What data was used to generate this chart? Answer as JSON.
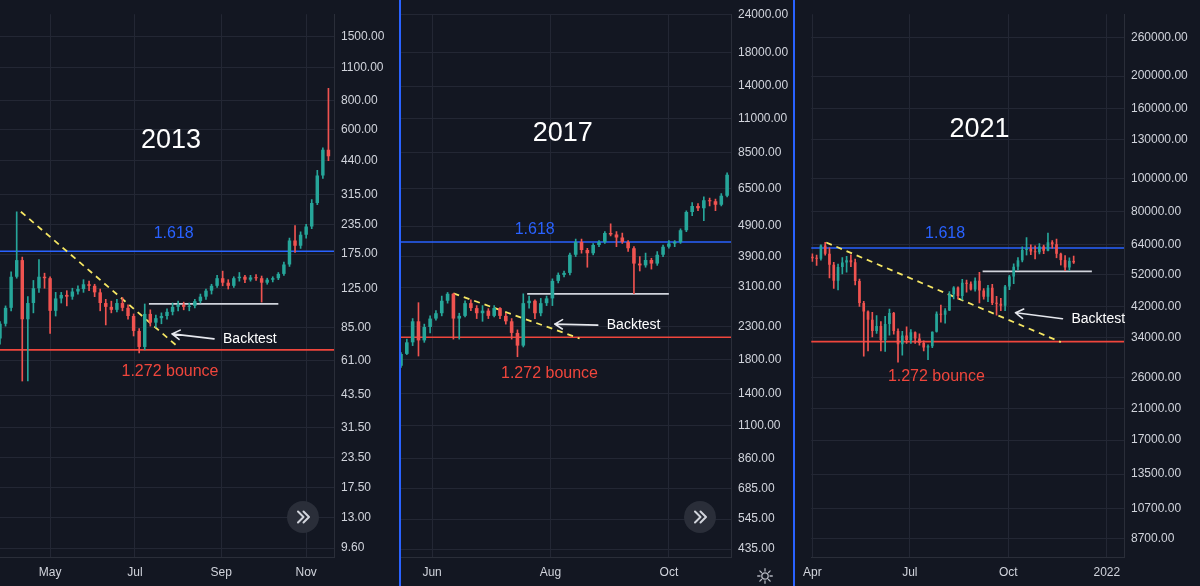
{
  "chart_data": [
    {
      "type": "candlestick",
      "title": "2013",
      "log": true,
      "grid": true,
      "marker": "none",
      "xlim": [
        "2013-03-26",
        "2013-11-21"
      ],
      "xticks": [
        {
          "value": "2013-05-01",
          "label": "May"
        },
        {
          "value": "2013-07-01",
          "label": "Jul"
        },
        {
          "value": "2013-09-01",
          "label": "Sep"
        },
        {
          "value": "2013-11-01",
          "label": "Nov"
        }
      ],
      "ylim": [
        8.8,
        1870
      ],
      "yticks": [
        {
          "value": 9.6,
          "label": "9.60"
        },
        {
          "value": 13,
          "label": "13.00"
        },
        {
          "value": 17.5,
          "label": "17.50"
        },
        {
          "value": 23.5,
          "label": "23.50"
        },
        {
          "value": 31.5,
          "label": "31.50"
        },
        {
          "value": 43.5,
          "label": "43.50"
        },
        {
          "value": 61,
          "label": "61.00"
        },
        {
          "value": 85,
          "label": "85.00"
        },
        {
          "value": 125,
          "label": "125.00"
        },
        {
          "value": 175,
          "label": "175.00"
        },
        {
          "value": 235,
          "label": "235.00"
        },
        {
          "value": 315,
          "label": "315.00"
        },
        {
          "value": 440,
          "label": "440.00"
        },
        {
          "value": 600,
          "label": "600.00"
        },
        {
          "value": 800,
          "label": "800.00"
        },
        {
          "value": 1100,
          "label": "1100.00"
        },
        {
          "value": 1500,
          "label": "1500.00"
        }
      ],
      "x": [
        "2013-03-26",
        "2013-03-30",
        "2013-04-03",
        "2013-04-07",
        "2013-04-11",
        "2013-04-15",
        "2013-04-19",
        "2013-04-23",
        "2013-04-27",
        "2013-05-01",
        "2013-05-05",
        "2013-05-09",
        "2013-05-13",
        "2013-05-17",
        "2013-05-21",
        "2013-05-25",
        "2013-05-29",
        "2013-06-02",
        "2013-06-06",
        "2013-06-10",
        "2013-06-14",
        "2013-06-18",
        "2013-06-22",
        "2013-06-26",
        "2013-06-30",
        "2013-07-04",
        "2013-07-08",
        "2013-07-12",
        "2013-07-16",
        "2013-07-20",
        "2013-07-24",
        "2013-07-28",
        "2013-08-01",
        "2013-08-05",
        "2013-08-09",
        "2013-08-13",
        "2013-08-17",
        "2013-08-21",
        "2013-08-25",
        "2013-08-29",
        "2013-09-02",
        "2013-09-06",
        "2013-09-10",
        "2013-09-14",
        "2013-09-18",
        "2013-09-22",
        "2013-09-26",
        "2013-09-30",
        "2013-10-04",
        "2013-10-08",
        "2013-10-12",
        "2013-10-16",
        "2013-10-20",
        "2013-10-24",
        "2013-10-28",
        "2013-11-01",
        "2013-11-05",
        "2013-11-09",
        "2013-11-13",
        "2013-11-17"
      ],
      "ohlc": [
        [
          76,
          90,
          72,
          88
        ],
        [
          88,
          105,
          86,
          103
        ],
        [
          103,
          147,
          100,
          140
        ],
        [
          140,
          266,
          138,
          165
        ],
        [
          165,
          170,
          50,
          92
        ],
        [
          92,
          115,
          50,
          108
        ],
        [
          108,
          135,
          98,
          125
        ],
        [
          125,
          166,
          120,
          140
        ],
        [
          140,
          145,
          125,
          138
        ],
        [
          138,
          140,
          80,
          100
        ],
        [
          100,
          120,
          95,
          113
        ],
        [
          113,
          120,
          108,
          117
        ],
        [
          117,
          122,
          105,
          115
        ],
        [
          115,
          125,
          112,
          121
        ],
        [
          121,
          128,
          118,
          124
        ],
        [
          124,
          136,
          120,
          130
        ],
        [
          130,
          134,
          122,
          128
        ],
        [
          128,
          130,
          115,
          120
        ],
        [
          120,
          124,
          100,
          108
        ],
        [
          108,
          112,
          87,
          104
        ],
        [
          104,
          110,
          98,
          101
        ],
        [
          101,
          112,
          99,
          108
        ],
        [
          108,
          114,
          100,
          103
        ],
        [
          103,
          106,
          92,
          95
        ],
        [
          95,
          97,
          78,
          82
        ],
        [
          82,
          84,
          66,
          70
        ],
        [
          70,
          107,
          68,
          97
        ],
        [
          97,
          101,
          86,
          89
        ],
        [
          89,
          96,
          85,
          93
        ],
        [
          93,
          98,
          88,
          95
        ],
        [
          95,
          102,
          92,
          99
        ],
        [
          99,
          108,
          96,
          104
        ],
        [
          104,
          110,
          100,
          106
        ],
        [
          106,
          109,
          101,
          104
        ],
        [
          104,
          108,
          100,
          105
        ],
        [
          105,
          112,
          103,
          110
        ],
        [
          110,
          118,
          108,
          115
        ],
        [
          115,
          124,
          112,
          122
        ],
        [
          122,
          130,
          118,
          128
        ],
        [
          128,
          142,
          126,
          138
        ],
        [
          138,
          148,
          128,
          132
        ],
        [
          132,
          136,
          124,
          128
        ],
        [
          128,
          140,
          126,
          138
        ],
        [
          138,
          146,
          134,
          140
        ],
        [
          140,
          142,
          132,
          136
        ],
        [
          136,
          142,
          134,
          139
        ],
        [
          139,
          143,
          135,
          138
        ],
        [
          138,
          141,
          109,
          132
        ],
        [
          132,
          138,
          130,
          136
        ],
        [
          136,
          140,
          133,
          138
        ],
        [
          138,
          146,
          136,
          144
        ],
        [
          144,
          162,
          142,
          158
        ],
        [
          158,
          205,
          155,
          200
        ],
        [
          200,
          232,
          178,
          190
        ],
        [
          190,
          218,
          185,
          212
        ],
        [
          212,
          235,
          205,
          230
        ],
        [
          230,
          300,
          225,
          290
        ],
        [
          290,
          400,
          285,
          380
        ],
        [
          380,
          500,
          370,
          490
        ],
        [
          490,
          900,
          440,
          460
        ]
      ],
      "colors": [
        "#26a69a",
        "#26a69a",
        "#26a69a",
        "#26a69a",
        "#ef5350",
        "#26a69a",
        "#26a69a",
        "#26a69a",
        "#ef5350",
        "#ef5350",
        "#26a69a",
        "#26a69a",
        "#ef5350",
        "#26a69a",
        "#26a69a",
        "#26a69a",
        "#ef5350",
        "#ef5350",
        "#ef5350",
        "#ef5350",
        "#ef5350",
        "#26a69a",
        "#ef5350",
        "#ef5350",
        "#ef5350",
        "#ef5350",
        "#26a69a",
        "#ef5350",
        "#26a69a",
        "#26a69a",
        "#26a69a",
        "#26a69a",
        "#26a69a",
        "#ef5350",
        "#26a69a",
        "#26a69a",
        "#26a69a",
        "#26a69a",
        "#26a69a",
        "#26a69a",
        "#ef5350",
        "#ef5350",
        "#26a69a",
        "#26a69a",
        "#ef5350",
        "#26a69a",
        "#ef5350",
        "#ef5350",
        "#26a69a",
        "#26a69a",
        "#26a69a",
        "#26a69a",
        "#26a69a",
        "#ef5350",
        "#26a69a",
        "#26a69a",
        "#26a69a",
        "#26a69a",
        "#26a69a",
        "#ef5350"
      ],
      "series": [
        {
          "type": "line",
          "x": [
            "2013-07-11",
            "2013-10-12"
          ],
          "values": [
            107,
            107
          ],
          "color": "#d1d4dc"
        },
        {
          "type": "line",
          "x": [
            "2013-04-10",
            "2013-08-01"
          ],
          "values": [
            266,
            70
          ],
          "color": "#f5e663",
          "line_style": "dashed"
        }
      ],
      "ref_lines": [
        {
          "axis": "y",
          "value": 180,
          "color": "#2962ff"
        },
        {
          "axis": "y",
          "value": 68,
          "label": "1.272 bounce",
          "color": "#f0463c"
        }
      ],
      "annotations": [
        "1.618",
        "Backtest"
      ]
    },
    {
      "type": "candlestick",
      "title": "2017",
      "log": true,
      "grid": true,
      "marker": "none",
      "xlim": [
        "2017-05-16",
        "2017-11-02"
      ],
      "xticks": [
        {
          "value": "2017-06-01",
          "label": "Jun"
        },
        {
          "value": "2017-08-01",
          "label": "Aug"
        },
        {
          "value": "2017-10-01",
          "label": "Oct"
        }
      ],
      "ylim": [
        410,
        24000
      ],
      "yticks": [
        {
          "value": 435,
          "label": "435.00"
        },
        {
          "value": 545,
          "label": "545.00"
        },
        {
          "value": 685,
          "label": "685.00"
        },
        {
          "value": 860,
          "label": "860.00"
        },
        {
          "value": 1100,
          "label": "1100.00"
        },
        {
          "value": 1400,
          "label": "1400.00"
        },
        {
          "value": 1800,
          "label": "1800.00"
        },
        {
          "value": 2300,
          "label": "2300.00"
        },
        {
          "value": 3100,
          "label": "3100.00"
        },
        {
          "value": 3900,
          "label": "3900.00"
        },
        {
          "value": 4900,
          "label": "4900.00"
        },
        {
          "value": 6500,
          "label": "6500.00"
        },
        {
          "value": 8500,
          "label": "8500.00"
        },
        {
          "value": 11000,
          "label": "11000.00"
        },
        {
          "value": 14000,
          "label": "14000.00"
        },
        {
          "value": 18000,
          "label": "18000.00"
        },
        {
          "value": 24000,
          "label": "24000.00"
        }
      ],
      "x": [
        "2017-05-16",
        "2017-05-19",
        "2017-05-22",
        "2017-05-25",
        "2017-05-28",
        "2017-05-31",
        "2017-06-03",
        "2017-06-06",
        "2017-06-09",
        "2017-06-12",
        "2017-06-15",
        "2017-06-18",
        "2017-06-21",
        "2017-06-24",
        "2017-06-27",
        "2017-06-30",
        "2017-07-03",
        "2017-07-06",
        "2017-07-09",
        "2017-07-12",
        "2017-07-15",
        "2017-07-18",
        "2017-07-21",
        "2017-07-24",
        "2017-07-27",
        "2017-07-30",
        "2017-08-02",
        "2017-08-05",
        "2017-08-08",
        "2017-08-11",
        "2017-08-14",
        "2017-08-17",
        "2017-08-20",
        "2017-08-23",
        "2017-08-26",
        "2017-08-29",
        "2017-09-01",
        "2017-09-04",
        "2017-09-07",
        "2017-09-10",
        "2017-09-13",
        "2017-09-16",
        "2017-09-19",
        "2017-09-22",
        "2017-09-25",
        "2017-09-28",
        "2017-10-01",
        "2017-10-04",
        "2017-10-07",
        "2017-10-10",
        "2017-10-13",
        "2017-10-16",
        "2017-10-19",
        "2017-10-22",
        "2017-10-25",
        "2017-10-28",
        "2017-10-31"
      ],
      "ohlc": [
        [
          1720,
          1900,
          1700,
          1880
        ],
        [
          1880,
          2100,
          1870,
          2050
        ],
        [
          2050,
          2450,
          2000,
          2400
        ],
        [
          2400,
          2760,
          1850,
          2080
        ],
        [
          2080,
          2350,
          2050,
          2300
        ],
        [
          2300,
          2500,
          2200,
          2450
        ],
        [
          2450,
          2600,
          2420,
          2550
        ],
        [
          2550,
          2900,
          2500,
          2800
        ],
        [
          2800,
          2980,
          2750,
          2950
        ],
        [
          2950,
          2960,
          2100,
          2450
        ],
        [
          2450,
          2550,
          2100,
          2500
        ],
        [
          2500,
          2800,
          2480,
          2750
        ],
        [
          2750,
          2820,
          2600,
          2650
        ],
        [
          2650,
          2700,
          2450,
          2550
        ],
        [
          2550,
          2700,
          2400,
          2600
        ],
        [
          2600,
          2640,
          2450,
          2500
        ],
        [
          2500,
          2700,
          2480,
          2650
        ],
        [
          2650,
          2660,
          2450,
          2500
        ],
        [
          2500,
          2550,
          2350,
          2400
        ],
        [
          2400,
          2450,
          2100,
          2200
        ],
        [
          2200,
          2250,
          1840,
          2000
        ],
        [
          2000,
          2950,
          1980,
          2750
        ],
        [
          2750,
          2900,
          2650,
          2800
        ],
        [
          2800,
          2820,
          2450,
          2550
        ],
        [
          2550,
          2850,
          2500,
          2750
        ],
        [
          2750,
          2900,
          2700,
          2850
        ],
        [
          2850,
          3300,
          2700,
          3250
        ],
        [
          3250,
          3450,
          3200,
          3400
        ],
        [
          3400,
          3500,
          3350,
          3450
        ],
        [
          3450,
          4000,
          3400,
          3950
        ],
        [
          3950,
          4450,
          3900,
          4350
        ],
        [
          4350,
          4450,
          4000,
          4100
        ],
        [
          4100,
          4150,
          3600,
          4000
        ],
        [
          4000,
          4300,
          3950,
          4250
        ],
        [
          4250,
          4400,
          4200,
          4350
        ],
        [
          4350,
          4700,
          4300,
          4650
        ],
        [
          4650,
          4980,
          4550,
          4600
        ],
        [
          4600,
          4700,
          4200,
          4500
        ],
        [
          4500,
          4650,
          4300,
          4350
        ],
        [
          4350,
          4400,
          4050,
          4150
        ],
        [
          4150,
          4200,
          2950,
          3700
        ],
        [
          3700,
          3900,
          3500,
          3650
        ],
        [
          3650,
          4000,
          3600,
          3800
        ],
        [
          3800,
          3850,
          3550,
          3700
        ],
        [
          3700,
          4050,
          3650,
          3950
        ],
        [
          3950,
          4250,
          3900,
          4200
        ],
        [
          4200,
          4400,
          4150,
          4300
        ],
        [
          4300,
          4400,
          4200,
          4350
        ],
        [
          4350,
          4800,
          4300,
          4750
        ],
        [
          4750,
          5500,
          4700,
          5450
        ],
        [
          5450,
          5850,
          5300,
          5700
        ],
        [
          5700,
          5800,
          5500,
          5600
        ],
        [
          5600,
          6100,
          5100,
          5950
        ],
        [
          5950,
          6050,
          5700,
          5900
        ],
        [
          5900,
          6000,
          5500,
          5750
        ],
        [
          5750,
          6250,
          5700,
          6150
        ],
        [
          6150,
          7300,
          6100,
          7200
        ]
      ],
      "colors": [
        "#26a69a",
        "#26a69a",
        "#26a69a",
        "#ef5350",
        "#26a69a",
        "#26a69a",
        "#26a69a",
        "#26a69a",
        "#26a69a",
        "#ef5350",
        "#26a69a",
        "#26a69a",
        "#ef5350",
        "#ef5350",
        "#26a69a",
        "#ef5350",
        "#26a69a",
        "#ef5350",
        "#ef5350",
        "#ef5350",
        "#ef5350",
        "#26a69a",
        "#26a69a",
        "#ef5350",
        "#26a69a",
        "#26a69a",
        "#26a69a",
        "#26a69a",
        "#26a69a",
        "#26a69a",
        "#26a69a",
        "#ef5350",
        "#ef5350",
        "#26a69a",
        "#26a69a",
        "#26a69a",
        "#ef5350",
        "#ef5350",
        "#ef5350",
        "#ef5350",
        "#ef5350",
        "#ef5350",
        "#26a69a",
        "#ef5350",
        "#26a69a",
        "#26a69a",
        "#26a69a",
        "#26a69a",
        "#26a69a",
        "#26a69a",
        "#26a69a",
        "#ef5350",
        "#26a69a",
        "#ef5350",
        "#ef5350",
        "#26a69a",
        "#26a69a"
      ],
      "series": [
        {
          "type": "line",
          "x": [
            "2017-07-20",
            "2017-10-01"
          ],
          "values": [
            2950,
            2950
          ],
          "color": "#d1d4dc"
        },
        {
          "type": "line",
          "x": [
            "2017-06-12",
            "2017-08-16"
          ],
          "values": [
            2960,
            2110
          ],
          "color": "#f5e663",
          "line_style": "dashed"
        }
      ],
      "ref_lines": [
        {
          "axis": "y",
          "value": 4350,
          "color": "#2962ff"
        },
        {
          "axis": "y",
          "value": 2130,
          "label": "1.272 bounce",
          "color": "#f0463c"
        }
      ],
      "annotations": [
        "1.618",
        "Backtest"
      ]
    },
    {
      "type": "candlestick",
      "title": "2021",
      "log": true,
      "grid": true,
      "marker": "none",
      "xlim": [
        "2021-03-31",
        "2022-01-17"
      ],
      "xticks": [
        {
          "value": "2021-04-01",
          "label": "Apr"
        },
        {
          "value": "2021-07-01",
          "label": "Jul"
        },
        {
          "value": "2021-10-01",
          "label": "Oct"
        },
        {
          "value": "2022-01-01",
          "label": "2022"
        }
      ],
      "ylim": [
        7700,
        304000
      ],
      "yticks": [
        {
          "value": 8700,
          "label": "8700.00"
        },
        {
          "value": 10700,
          "label": "10700.00"
        },
        {
          "value": 13500,
          "label": "13500.00"
        },
        {
          "value": 17000,
          "label": "17000.00"
        },
        {
          "value": 21000,
          "label": "21000.00"
        },
        {
          "value": 26000,
          "label": "26000.00"
        },
        {
          "value": 34000,
          "label": "34000.00"
        },
        {
          "value": 42000,
          "label": "42000.00"
        },
        {
          "value": 52000,
          "label": "52000.00"
        },
        {
          "value": 64000,
          "label": "64000.00"
        },
        {
          "value": 80000,
          "label": "80000.00"
        },
        {
          "value": 100000,
          "label": "100000.00"
        },
        {
          "value": 130000,
          "label": "130000.00"
        },
        {
          "value": 160000,
          "label": "160000.00"
        },
        {
          "value": 200000,
          "label": "200000.00"
        },
        {
          "value": 260000,
          "label": "260000.00"
        }
      ],
      "x": [
        "2021-04-01",
        "2021-04-05",
        "2021-04-09",
        "2021-04-13",
        "2021-04-17",
        "2021-04-21",
        "2021-04-25",
        "2021-04-29",
        "2021-05-03",
        "2021-05-07",
        "2021-05-11",
        "2021-05-15",
        "2021-05-19",
        "2021-05-23",
        "2021-05-27",
        "2021-05-31",
        "2021-06-04",
        "2021-06-08",
        "2021-06-12",
        "2021-06-16",
        "2021-06-20",
        "2021-06-24",
        "2021-06-28",
        "2021-07-02",
        "2021-07-06",
        "2021-07-10",
        "2021-07-14",
        "2021-07-18",
        "2021-07-22",
        "2021-07-26",
        "2021-07-30",
        "2021-08-03",
        "2021-08-07",
        "2021-08-11",
        "2021-08-15",
        "2021-08-19",
        "2021-08-23",
        "2021-08-27",
        "2021-08-31",
        "2021-09-04",
        "2021-09-08",
        "2021-09-12",
        "2021-09-16",
        "2021-09-20",
        "2021-09-24",
        "2021-09-28",
        "2021-10-02",
        "2021-10-06",
        "2021-10-10",
        "2021-10-14",
        "2021-10-18",
        "2021-10-22",
        "2021-10-26",
        "2021-10-30",
        "2021-11-03",
        "2021-11-07",
        "2021-11-11",
        "2021-11-15",
        "2021-11-19",
        "2021-11-23",
        "2021-11-27",
        "2021-12-01"
      ],
      "ohlc": [
        [
          58800,
          60000,
          57000,
          58200
        ],
        [
          58200,
          59500,
          55500,
          58000
        ],
        [
          58000,
          63800,
          57500,
          63500
        ],
        [
          63500,
          64800,
          59500,
          60000
        ],
        [
          60000,
          62500,
          51000,
          55700
        ],
        [
          55700,
          56600,
          47500,
          50000
        ],
        [
          50000,
          56000,
          47000,
          54900
        ],
        [
          54900,
          58500,
          52400,
          56600
        ],
        [
          56600,
          59000,
          53000,
          57400
        ],
        [
          57400,
          59600,
          55000,
          56700
        ],
        [
          56700,
          57900,
          48600,
          49900
        ],
        [
          49900,
          50600,
          42000,
          43000
        ],
        [
          43000,
          43500,
          30000,
          40600
        ],
        [
          40600,
          40800,
          31100,
          38400
        ],
        [
          38400,
          40400,
          34200,
          35600
        ],
        [
          35600,
          39500,
          35000,
          36800
        ],
        [
          36800,
          37900,
          31100,
          33500
        ],
        [
          33500,
          39300,
          31000,
          37300
        ],
        [
          37300,
          41300,
          34600,
          40200
        ],
        [
          40200,
          40400,
          34800,
          35600
        ],
        [
          35600,
          36100,
          28800,
          32500
        ],
        [
          32500,
          35500,
          30200,
          34500
        ],
        [
          34500,
          36600,
          32700,
          33500
        ],
        [
          33500,
          35900,
          32700,
          35300
        ],
        [
          35300,
          35400,
          32700,
          33800
        ],
        [
          33800,
          34900,
          32300,
          32800
        ],
        [
          32800,
          33300,
          31100,
          31800
        ],
        [
          31800,
          32400,
          29300,
          32100
        ],
        [
          32100,
          35400,
          31800,
          35400
        ],
        [
          35400,
          40500,
          35300,
          40000
        ],
        [
          40000,
          42400,
          37800,
          39700
        ],
        [
          39700,
          41400,
          37500,
          40900
        ],
        [
          40900,
          46500,
          40800,
          45600
        ],
        [
          45600,
          48100,
          44200,
          47800
        ],
        [
          47800,
          48000,
          44200,
          45100
        ],
        [
          45100,
          50500,
          43900,
          49300
        ],
        [
          49300,
          50200,
          46300,
          49000
        ],
        [
          49000,
          49600,
          46900,
          47100
        ],
        [
          47100,
          51000,
          46600,
          50000
        ],
        [
          50000,
          52900,
          43000,
          46800
        ],
        [
          46800,
          47400,
          44100,
          44900
        ],
        [
          44900,
          48500,
          43400,
          47700
        ],
        [
          47700,
          48800,
          42500,
          43000
        ],
        [
          43000,
          45000,
          39600,
          42800
        ],
        [
          42800,
          44400,
          40800,
          42200
        ],
        [
          42200,
          48500,
          40800,
          48100
        ],
        [
          48100,
          51900,
          47100,
          51500
        ],
        [
          51500,
          56100,
          49000,
          55000
        ],
        [
          55000,
          58500,
          53800,
          57400
        ],
        [
          57400,
          62900,
          56800,
          61600
        ],
        [
          61600,
          67000,
          59500,
          62200
        ],
        [
          62200,
          63800,
          59700,
          60900
        ],
        [
          60900,
          63300,
          58000,
          60600
        ],
        [
          60600,
          64300,
          60000,
          63100
        ],
        [
          63100,
          63700,
          60100,
          61300
        ],
        [
          61300,
          69000,
          61200,
          64900
        ],
        [
          64900,
          65600,
          62300,
          64000
        ],
        [
          64000,
          66300,
          58400,
          60000
        ],
        [
          60000,
          60300,
          55600,
          57500
        ],
        [
          57500,
          59300,
          53500,
          54700
        ],
        [
          54700,
          58400,
          53600,
          57200
        ],
        [
          57200,
          59100,
          56200,
          56600
        ]
      ],
      "colors": [
        "#ef5350",
        "#ef5350",
        "#26a69a",
        "#ef5350",
        "#ef5350",
        "#ef5350",
        "#26a69a",
        "#26a69a",
        "#26a69a",
        "#ef5350",
        "#ef5350",
        "#ef5350",
        "#ef5350",
        "#ef5350",
        "#ef5350",
        "#26a69a",
        "#ef5350",
        "#26a69a",
        "#26a69a",
        "#ef5350",
        "#ef5350",
        "#26a69a",
        "#ef5350",
        "#26a69a",
        "#ef5350",
        "#ef5350",
        "#ef5350",
        "#26a69a",
        "#26a69a",
        "#26a69a",
        "#ef5350",
        "#26a69a",
        "#26a69a",
        "#26a69a",
        "#ef5350",
        "#26a69a",
        "#ef5350",
        "#ef5350",
        "#26a69a",
        "#ef5350",
        "#ef5350",
        "#26a69a",
        "#ef5350",
        "#ef5350",
        "#ef5350",
        "#26a69a",
        "#26a69a",
        "#26a69a",
        "#26a69a",
        "#26a69a",
        "#26a69a",
        "#ef5350",
        "#ef5350",
        "#26a69a",
        "#ef5350",
        "#26a69a",
        "#ef5350",
        "#ef5350",
        "#ef5350",
        "#ef5350",
        "#26a69a",
        "#ef5350"
      ],
      "series": [
        {
          "type": "line",
          "x": [
            "2021-09-07",
            "2021-12-18"
          ],
          "values": [
            53300,
            53300
          ],
          "color": "#d1d4dc"
        },
        {
          "type": "line",
          "x": [
            "2021-04-14",
            "2021-11-19"
          ],
          "values": [
            64800,
            33000
          ],
          "color": "#f5e663",
          "line_style": "dashed"
        }
      ],
      "ref_lines": [
        {
          "axis": "y",
          "value": 62400,
          "color": "#2962ff"
        },
        {
          "axis": "y",
          "value": 33100,
          "label": "1.272 bounce",
          "color": "#f0463c"
        }
      ],
      "annotations": [
        "1.618",
        "Backtest"
      ]
    }
  ]
}
